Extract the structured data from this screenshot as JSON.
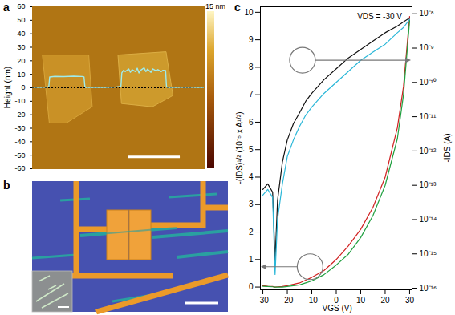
{
  "chart_data": [
    {
      "panel": "a",
      "type": "line",
      "x": [
        0,
        4,
        8,
        9.5,
        10,
        13,
        18,
        24,
        29,
        30,
        30.5,
        31,
        36,
        42,
        48,
        51.5,
        52,
        53,
        54,
        56,
        57,
        58,
        60,
        61,
        62,
        63,
        65,
        66,
        67,
        69,
        70,
        72,
        73,
        75,
        76,
        77.5,
        78,
        78.5,
        84,
        90,
        96,
        100
      ],
      "values": [
        0.5,
        0.3,
        0.5,
        1,
        8,
        8.5,
        8.3,
        8.6,
        8.4,
        8,
        1,
        0.3,
        0.4,
        0.2,
        0.5,
        1,
        11,
        13,
        12,
        14,
        11.5,
        13.5,
        12,
        14.5,
        11,
        13,
        14.8,
        12,
        13.8,
        11.5,
        14,
        12.5,
        13.5,
        12,
        13,
        12.8,
        1,
        0.4,
        0.3,
        0.5,
        0.2,
        0.3
      ],
      "color": "#9fecec",
      "xlim": [
        0,
        100
      ],
      "ylim": [
        -60,
        60
      ],
      "yticks": [
        -60,
        -50,
        -40,
        -30,
        -20,
        -10,
        0,
        10,
        20,
        30,
        40,
        50,
        60
      ],
      "y_label": "Height (nm)",
      "tick_labels": "y",
      "reference_line": 0,
      "colorbar": {
        "range": [
          0,
          15
        ],
        "ticks": [
          {
            "value": 15,
            "label": "15 nm"
          }
        ]
      }
    },
    {
      "panel": "b",
      "type": "image"
    },
    {
      "panel": "c",
      "type": "line",
      "annotation": "VDS = -30 V",
      "x_label": "-VGS (V)",
      "y_label": "-(IDS)¹/² (10⁻⁵ x A¹/²)",
      "y2_label": "-IDS (A)",
      "log": "y2",
      "x": [
        -30,
        -28,
        -26,
        -25,
        -24,
        -22,
        -20,
        -17.5,
        -15,
        -12.5,
        -10,
        -5,
        0,
        5,
        10,
        15,
        20,
        25,
        27.5,
        30
      ],
      "xlim": [
        -31,
        31
      ],
      "xticks": [
        -30,
        -20,
        -10,
        0,
        10,
        20,
        30
      ],
      "ylim": [
        -0.1,
        10.2
      ],
      "yticks": [
        0,
        1,
        2,
        3,
        4,
        5,
        6,
        7,
        8,
        9,
        10
      ],
      "y2lim": [
        9e-17,
        1.6e-08
      ],
      "y2ticks": [
        {
          "value": 1e-16,
          "label": "10⁻¹⁶"
        },
        {
          "value": 1e-15,
          "label": "10⁻¹⁵"
        },
        {
          "value": 1e-14,
          "label": "10⁻¹⁴"
        },
        {
          "value": 1e-13,
          "label": "10⁻¹³"
        },
        {
          "value": 1e-12,
          "label": "10⁻¹²"
        },
        {
          "value": 1e-11,
          "label": "10⁻¹¹"
        },
        {
          "value": 1e-10,
          "label": "10⁻¹⁰"
        },
        {
          "value": 1e-09,
          "label": "10⁻⁹"
        },
        {
          "value": 1e-08,
          "label": "10⁻⁸"
        }
      ],
      "series": [
        {
          "color": "#111111",
          "axis": "y2",
          "values": [
            7.6e-14,
            1.1e-13,
            6.3e-14,
            6.3e-16,
            3.6e-14,
            4.8e-13,
            2.1e-12,
            6.3e-12,
            1.3e-11,
            2.8e-11,
            4.8e-11,
            1.2e-10,
            2.5e-10,
            5.2e-10,
            9.1e-10,
            1.6e-09,
            2.8e-09,
            4.4e-09,
            5.8e-09,
            7.6e-09
          ]
        },
        {
          "color": "#2ab7d8",
          "axis": "y2",
          "values": [
            5.2e-14,
            7.6e-14,
            4.4e-14,
            2.5e-16,
            1e-14,
            1.1e-13,
            6.9e-13,
            2.1e-12,
            5.2e-12,
            1.1e-11,
            1.9e-11,
            4.8e-11,
            1e-10,
            2.1e-10,
            4.4e-10,
            7.6e-10,
            1.3e-09,
            2.8e-09,
            4e-09,
            6.9e-09
          ]
        },
        {
          "color": "#d02020",
          "values": [
            0.05,
            0.03,
            0.02,
            0,
            0.01,
            0.02,
            0.05,
            0.1,
            0.15,
            0.25,
            0.35,
            0.6,
            1.0,
            1.5,
            2.1,
            2.9,
            4.0,
            5.8,
            7.3,
            9.85
          ]
        },
        {
          "color": "#20a040",
          "values": [
            0.03,
            0.02,
            0.01,
            0,
            0,
            0,
            0.02,
            0.05,
            0.08,
            0.15,
            0.22,
            0.45,
            0.8,
            1.2,
            1.8,
            2.6,
            3.7,
            5.4,
            7.0,
            9.7
          ]
        }
      ]
    }
  ]
}
